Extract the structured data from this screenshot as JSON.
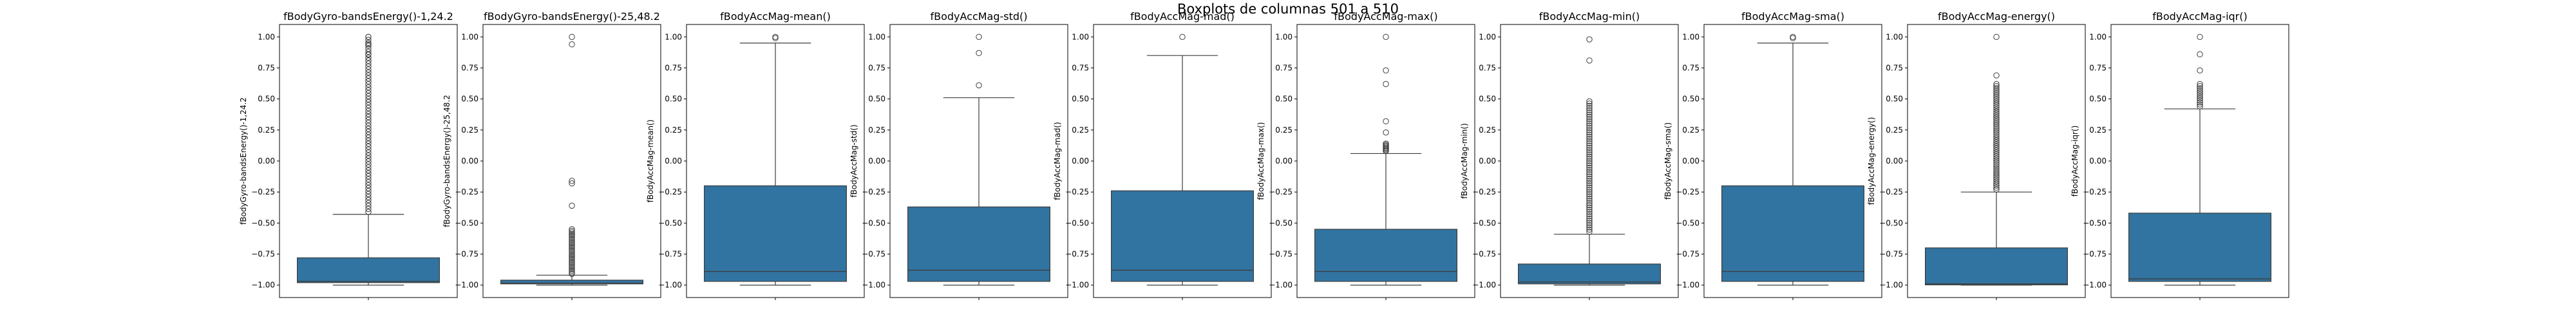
{
  "figure": {
    "suptitle": "Boxplots de columnas 501 a 510",
    "box_color": "#3274a1",
    "line_color": "#3d3d3d"
  },
  "chart_data": [
    {
      "type": "box",
      "title": "fBodyGyro-bandsEnergy()-1,24.2",
      "ylabel": "fBodyGyro-bandsEnergy()-1,24.2",
      "ylim": [
        -1.1,
        1.1
      ],
      "yticks": [
        "1.00",
        "0.75",
        "0.50",
        "0.25",
        "0.00",
        "−0.25",
        "−0.50",
        "−0.75",
        "−1.00"
      ],
      "q1": -0.98,
      "median": -0.97,
      "q3": -0.78,
      "whisker_low": -1.0,
      "whisker_high": -0.43,
      "outlier_range": [
        -0.41,
        1.0
      ],
      "outlier_count": 60,
      "outliers": [
        0.86,
        0.94,
        1.0
      ]
    },
    {
      "type": "box",
      "title": "fBodyGyro-bandsEnergy()-25,48.2",
      "ylabel": "fBodyGyro-bandsEnergy()-25,48.2",
      "ylim": [
        -1.1,
        1.1
      ],
      "yticks": [
        "1.00",
        "0.75",
        "0.50",
        "0.25",
        "0.00",
        "−0.25",
        "−0.50",
        "−0.75",
        "−1.00"
      ],
      "q1": -0.99,
      "median": -0.985,
      "q3": -0.96,
      "whisker_low": -1.0,
      "whisker_high": -0.92,
      "outlier_range": [
        -0.91,
        -0.55
      ],
      "outlier_count": 30,
      "outliers": [
        -0.36,
        -0.18,
        -0.16,
        0.94,
        1.0
      ]
    },
    {
      "type": "box",
      "title": "fBodyAccMag-mean()",
      "ylabel": "fBodyAccMag-mean()",
      "ylim": [
        -1.1,
        1.1
      ],
      "yticks": [
        "1.00",
        "0.75",
        "0.50",
        "0.25",
        "0.00",
        "−0.25",
        "−0.50",
        "−0.75",
        "−1.00"
      ],
      "q1": -0.97,
      "median": -0.89,
      "q3": -0.2,
      "whisker_low": -1.0,
      "whisker_high": 0.95,
      "outlier_range": null,
      "outlier_count": 0,
      "outliers": [
        0.99,
        1.0
      ]
    },
    {
      "type": "box",
      "title": "fBodyAccMag-std()",
      "ylabel": "fBodyAccMag-std()",
      "ylim": [
        -1.1,
        1.1
      ],
      "yticks": [
        "1.00",
        "0.75",
        "0.50",
        "0.25",
        "0.00",
        "−0.25",
        "−0.50",
        "−0.75",
        "−1.00"
      ],
      "q1": -0.97,
      "median": -0.88,
      "q3": -0.37,
      "whisker_low": -1.0,
      "whisker_high": 0.51,
      "outlier_range": null,
      "outlier_count": 0,
      "outliers": [
        0.61,
        0.87,
        1.0
      ]
    },
    {
      "type": "box",
      "title": "fBodyAccMag-mad()",
      "ylabel": "fBodyAccMag-mad()",
      "ylim": [
        -1.1,
        1.1
      ],
      "yticks": [
        "1.00",
        "0.75",
        "0.50",
        "0.25",
        "0.00",
        "−0.25",
        "−0.50",
        "−0.75",
        "−1.00"
      ],
      "q1": -0.97,
      "median": -0.88,
      "q3": -0.24,
      "whisker_low": -1.0,
      "whisker_high": 0.85,
      "outlier_range": null,
      "outlier_count": 0,
      "outliers": [
        1.0
      ]
    },
    {
      "type": "box",
      "title": "fBodyAccMag-max()",
      "ylabel": "fBodyAccMag-max()",
      "ylim": [
        -1.1,
        1.1
      ],
      "yticks": [
        "1.00",
        "0.75",
        "0.50",
        "0.25",
        "0.00",
        "−0.25",
        "−0.50",
        "−0.75",
        "−1.00"
      ],
      "q1": -0.97,
      "median": -0.89,
      "q3": -0.55,
      "whisker_low": -1.0,
      "whisker_high": 0.06,
      "outlier_range": [
        0.08,
        0.14
      ],
      "outlier_count": 8,
      "outliers": [
        0.23,
        0.32,
        0.62,
        0.73,
        1.0
      ]
    },
    {
      "type": "box",
      "title": "fBodyAccMag-min()",
      "ylabel": "fBodyAccMag-min()",
      "ylim": [
        -1.1,
        1.1
      ],
      "yticks": [
        "1.00",
        "0.75",
        "0.50",
        "0.25",
        "0.00",
        "−0.25",
        "−0.50",
        "−0.75",
        "−1.00"
      ],
      "q1": -0.99,
      "median": -0.975,
      "q3": -0.83,
      "whisker_low": -1.0,
      "whisker_high": -0.59,
      "outlier_range": [
        -0.57,
        0.48
      ],
      "outlier_count": 60,
      "outliers": [
        0.81,
        0.98
      ]
    },
    {
      "type": "box",
      "title": "fBodyAccMag-sma()",
      "ylabel": "fBodyAccMag-sma()",
      "ylim": [
        -1.1,
        1.1
      ],
      "yticks": [
        "1.00",
        "0.75",
        "0.50",
        "0.25",
        "0.00",
        "−0.25",
        "−0.50",
        "−0.75",
        "−1.00"
      ],
      "q1": -0.97,
      "median": -0.89,
      "q3": -0.2,
      "whisker_low": -1.0,
      "whisker_high": 0.95,
      "outlier_range": null,
      "outlier_count": 0,
      "outliers": [
        0.99,
        1.0
      ]
    },
    {
      "type": "box",
      "title": "fBodyAccMag-energy()",
      "ylabel": "fBodyAccMag-energy()",
      "ylim": [
        -1.1,
        1.1
      ],
      "yticks": [
        "1.00",
        "0.75",
        "0.50",
        "0.25",
        "0.00",
        "−0.25",
        "−0.50",
        "−0.75",
        "−1.00"
      ],
      "q1": -0.998,
      "median": -0.99,
      "q3": -0.7,
      "whisker_low": -1.0,
      "whisker_high": -0.25,
      "outlier_range": [
        -0.23,
        0.62
      ],
      "outlier_count": 55,
      "outliers": [
        0.69,
        1.0
      ]
    },
    {
      "type": "box",
      "title": "fBodyAccMag-iqr()",
      "ylabel": "fBodyAccMag-iqr()",
      "ylim": [
        -1.1,
        1.1
      ],
      "yticks": [
        "1.00",
        "0.75",
        "0.50",
        "0.25",
        "0.00",
        "−0.25",
        "−0.50",
        "−0.75",
        "−1.00"
      ],
      "q1": -0.97,
      "median": -0.95,
      "q3": -0.42,
      "whisker_low": -1.0,
      "whisker_high": 0.42,
      "outlier_range": [
        0.44,
        0.62
      ],
      "outlier_count": 12,
      "outliers": [
        0.73,
        0.86,
        1.0
      ]
    }
  ]
}
